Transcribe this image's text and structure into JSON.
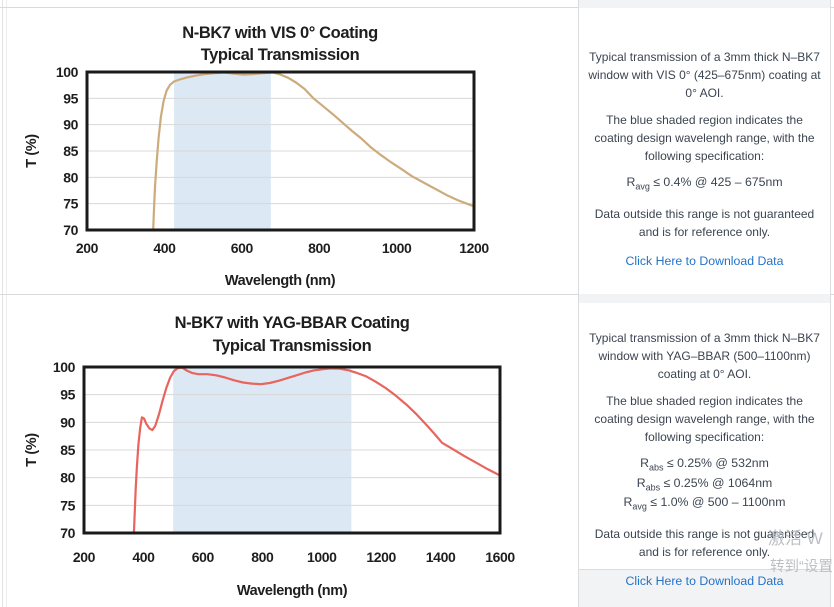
{
  "chart_data": [
    {
      "type": "line",
      "title": "N-BK7 with VIS 0° Coating",
      "subtitle": "Typical Transmission",
      "xlabel": "Wavelength (nm)",
      "ylabel": "T (%)",
      "xlim": [
        200,
        1200
      ],
      "ylim": [
        70,
        100
      ],
      "xticks": [
        200,
        400,
        600,
        800,
        1000,
        1200
      ],
      "yticks": [
        70,
        75,
        80,
        85,
        90,
        95,
        100
      ],
      "grid": "horizontal",
      "legend": "none",
      "band": {
        "range": [
          425,
          675
        ],
        "color": "#dce9f4",
        "meaning": "coating design wavelength range"
      },
      "line_color": "#ccab7d",
      "series": [
        {
          "name": "Typical Transmission",
          "points": [
            [
              371,
              70
            ],
            [
              373,
              74
            ],
            [
              376,
              78.5
            ],
            [
              380,
              83
            ],
            [
              385,
              87.5
            ],
            [
              391,
              91.5
            ],
            [
              398,
              94.5
            ],
            [
              406,
              96.5
            ],
            [
              415,
              97.6
            ],
            [
              425,
              98.2
            ],
            [
              440,
              98.6
            ],
            [
              460,
              99.0
            ],
            [
              480,
              99.3
            ],
            [
              505,
              99.6
            ],
            [
              530,
              99.8
            ],
            [
              555,
              99.9
            ],
            [
              580,
              99.7
            ],
            [
              605,
              99.5
            ],
            [
              630,
              99.6
            ],
            [
              655,
              99.8
            ],
            [
              680,
              99.9
            ],
            [
              700,
              99.5
            ],
            [
              720,
              98.9
            ],
            [
              740,
              98.0
            ],
            [
              762,
              96.8
            ],
            [
              785,
              95.0
            ],
            [
              810,
              93.5
            ],
            [
              835,
              92.0
            ],
            [
              860,
              90.4
            ],
            [
              885,
              88.8
            ],
            [
              910,
              87.3
            ],
            [
              935,
              85.6
            ],
            [
              960,
              84.2
            ],
            [
              985,
              82.9
            ],
            [
              1010,
              81.7
            ],
            [
              1040,
              80.2
            ],
            [
              1070,
              79.0
            ],
            [
              1100,
              77.8
            ],
            [
              1130,
              76.6
            ],
            [
              1160,
              75.6
            ],
            [
              1185,
              74.9
            ],
            [
              1200,
              74.5
            ]
          ]
        }
      ]
    },
    {
      "type": "line",
      "title": "N-BK7 with YAG-BBAR Coating",
      "subtitle": "Typical Transmission",
      "xlabel": "Wavelength (nm)",
      "ylabel": "T (%)",
      "xlim": [
        200,
        1600
      ],
      "ylim": [
        70,
        100
      ],
      "xticks": [
        200,
        400,
        600,
        800,
        1000,
        1200,
        1400,
        1600
      ],
      "yticks": [
        70,
        75,
        80,
        85,
        90,
        95,
        100
      ],
      "grid": "horizontal",
      "legend": "none",
      "band": {
        "range": [
          500,
          1100
        ],
        "color": "#dce9f4",
        "meaning": "coating design wavelength range"
      },
      "line_color": "#e8645c",
      "series": [
        {
          "name": "Typical Transmission",
          "points": [
            [
              368,
              70
            ],
            [
              371,
              74
            ],
            [
              374,
              78
            ],
            [
              378,
              82
            ],
            [
              383,
              86
            ],
            [
              389,
              89
            ],
            [
              395,
              90.9
            ],
            [
              402,
              90.7
            ],
            [
              410,
              89.7
            ],
            [
              420,
              88.9
            ],
            [
              430,
              88.6
            ],
            [
              440,
              89.4
            ],
            [
              452,
              91.4
            ],
            [
              464,
              93.8
            ],
            [
              477,
              96.2
            ],
            [
              490,
              98.1
            ],
            [
              502,
              99.2
            ],
            [
              515,
              99.8
            ],
            [
              530,
              99.9
            ],
            [
              548,
              99.3
            ],
            [
              565,
              98.9
            ],
            [
              585,
              98.7
            ],
            [
              615,
              98.7
            ],
            [
              645,
              98.5
            ],
            [
              675,
              98.1
            ],
            [
              705,
              97.6
            ],
            [
              735,
              97.2
            ],
            [
              765,
              97.0
            ],
            [
              795,
              96.9
            ],
            [
              825,
              97.1
            ],
            [
              855,
              97.5
            ],
            [
              885,
              98.0
            ],
            [
              915,
              98.5
            ],
            [
              945,
              99.0
            ],
            [
              975,
              99.4
            ],
            [
              1005,
              99.6
            ],
            [
              1030,
              99.75
            ],
            [
              1060,
              99.7
            ],
            [
              1090,
              99.4
            ],
            [
              1120,
              98.9
            ],
            [
              1150,
              98.3
            ],
            [
              1180,
              97.4
            ],
            [
              1215,
              96.2
            ],
            [
              1250,
              94.8
            ],
            [
              1285,
              93.2
            ],
            [
              1320,
              91.4
            ],
            [
              1355,
              89.4
            ],
            [
              1380,
              87.9
            ],
            [
              1405,
              86.3
            ],
            [
              1440,
              85.2
            ],
            [
              1480,
              83.9
            ],
            [
              1520,
              82.7
            ],
            [
              1560,
              81.5
            ],
            [
              1600,
              80.4
            ]
          ]
        }
      ]
    }
  ],
  "panels": [
    {
      "description": "Typical transmission of a 3mm thick N–BK7 window with VIS 0° (425–675nm) coating at 0° AOI.",
      "band_note": "The blue shaded region indicates the coating design wavelengh range, with the following specification:",
      "specs": [
        {
          "base": "R",
          "sub": "avg",
          "text": " ≤ 0.4% @ 425 – 675nm"
        }
      ],
      "disclaimer": "Data outside this range is not guaranteed and is for reference only.",
      "link": "Click Here to Download Data"
    },
    {
      "description": "Typical transmission of a 3mm thick N–BK7 window with YAG–BBAR (500–1100nm) coating at 0° AOI.",
      "band_note": "The blue shaded region indicates the coating design wavelengh range, with the following specification:",
      "specs": [
        {
          "base": "R",
          "sub": "abs",
          "text": " ≤ 0.25% @ 532nm"
        },
        {
          "base": "R",
          "sub": "abs",
          "text": " ≤ 0.25% @ 1064nm"
        },
        {
          "base": "R",
          "sub": "avg",
          "text": " ≤ 1.0% @ 500 – 1100nm"
        }
      ],
      "disclaimer": "Data outside this range is not guaranteed and is for reference only.",
      "link": "Click Here to Download Data"
    }
  ],
  "watermark": {
    "line1": "激活 W",
    "line2": "转到“设置"
  },
  "colors": {
    "curve_vis": "#ccab7d",
    "curve_yag": "#e8645c",
    "band_blue": "#dce9f4",
    "link_blue": "#2472c8",
    "text_dark": "#3b4450"
  }
}
